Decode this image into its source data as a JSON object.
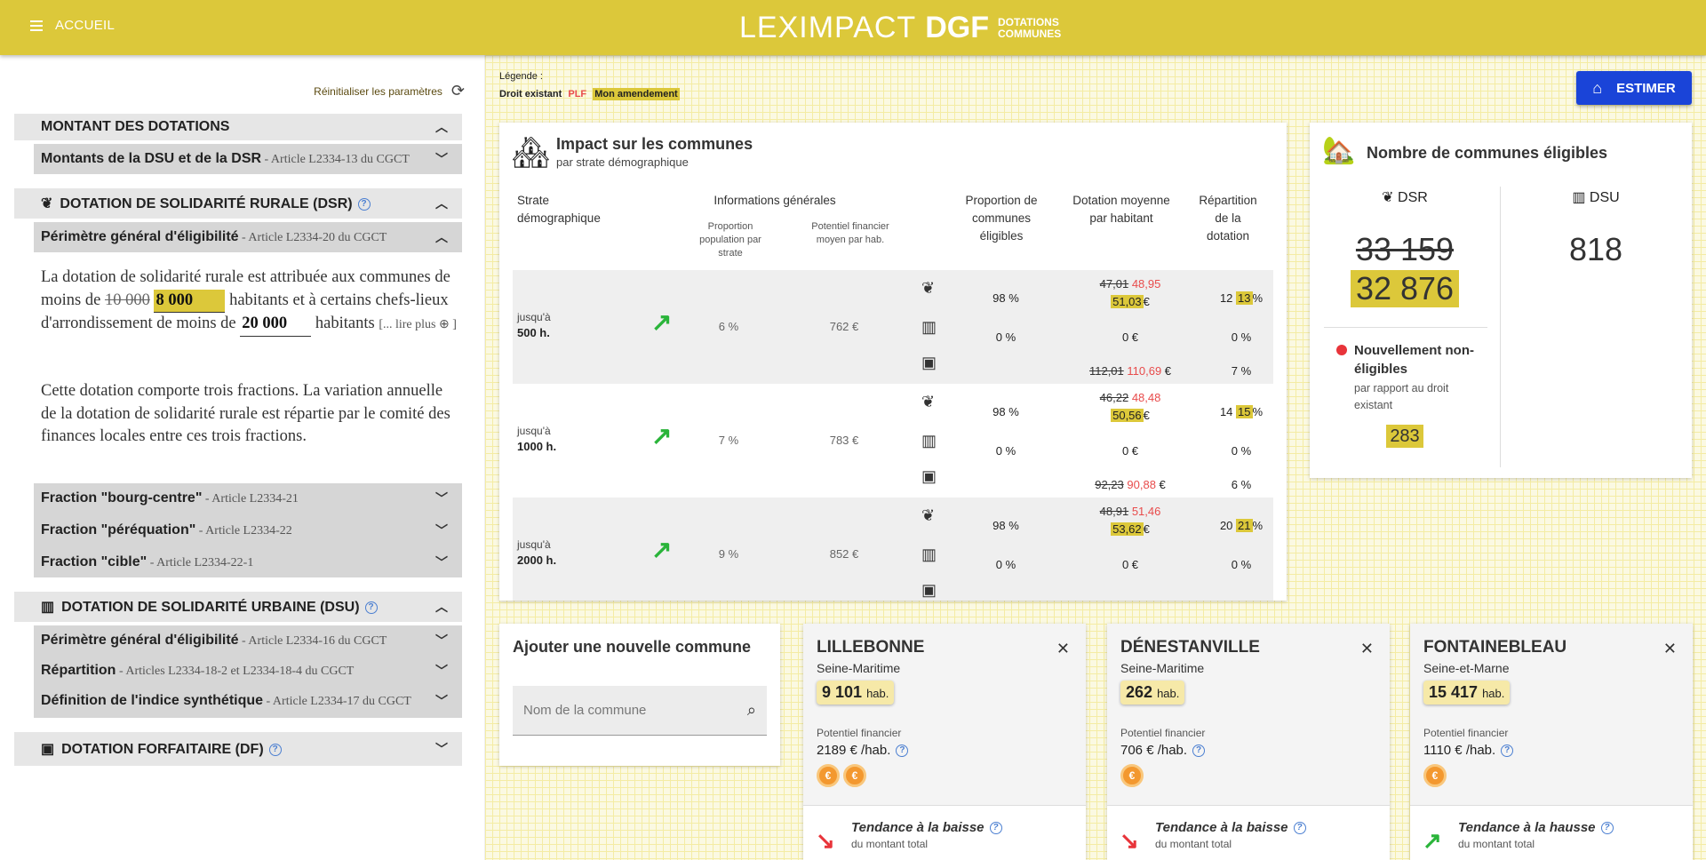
{
  "header": {
    "menu_label": "ACCUEIL",
    "brand_main": "LEXIMPACT",
    "brand_bold": "DGF",
    "brand_sub_1": "DOTATIONS",
    "brand_sub_2": "COMMUNES"
  },
  "sidebar": {
    "reset_label": "Réinitialiser les paramètres",
    "sections": {
      "montant": {
        "title": "MONTANT DES DOTATIONS"
      },
      "montant_sub": {
        "title": "Montants de la DSU et de la DSR",
        "ref": " - Article L2334-13 du CGCT"
      },
      "dsr": {
        "title": "DOTATION DE SOLIDARITÉ RURALE (DSR)"
      },
      "dsr_perimetre": {
        "title": "Périmètre général d'éligibilité",
        "ref": " - Article L2334-20 du CGCT"
      },
      "dsr_bourg": {
        "title": "Fraction \"bourg-centre\"",
        "ref": " - Article L2334-21"
      },
      "dsr_perequation": {
        "title": "Fraction \"péréquation\"",
        "ref": " - Article L2334-22"
      },
      "dsr_cible": {
        "title": "Fraction \"cible\"",
        "ref": " - Article L2334-22-1"
      },
      "dsu": {
        "title": "DOTATION DE SOLIDARITÉ URBAINE (DSU)"
      },
      "dsu_perimetre": {
        "title": "Périmètre général d'éligibilité",
        "ref": " - Article L2334-16 du CGCT"
      },
      "dsu_repartition": {
        "title": "Répartition",
        "ref": " - Articles L2334-18-2 et L2334-18-4 du CGCT"
      },
      "dsu_indice": {
        "title": "Définition de l'indice synthétique",
        "ref": " - Article L2334-17 du CGCT"
      },
      "df": {
        "title": "DOTATION FORFAITAIRE (DF)"
      }
    },
    "dsr_text": {
      "p1_a": "La dotation de solidarité rurale est attribuée aux communes de moins de ",
      "old_threshold": "10 000",
      "new_threshold": "8 000",
      "p1_b": " habitants et à certains chefs-lieux d'arrondissement de moins de ",
      "threshold2": "20 000",
      "p1_c": " habitants ",
      "more": "[... lire plus ⊕ ]",
      "p2": "Cette dotation comporte trois fractions. La variation annuelle de la dotation de solidarité rurale est répartie par le comité des finances locales entre ces trois fractions."
    }
  },
  "legend": {
    "title": "Légende :",
    "existant": "Droit existant",
    "plf": "PLF",
    "amendement": "Mon amendement"
  },
  "estimer_label": "ESTIMER",
  "impact": {
    "title": "Impact sur les communes",
    "subtitle": "par strate démographique",
    "headers": {
      "strate": "Strate démographique",
      "infos": "Informations générales",
      "prop_pop": "Proportion population par strate",
      "potentiel": "Potentiel financier moyen par hab.",
      "prop_elig": "Proportion de communes éligibles",
      "dot_moy": "Dotation moyenne par habitant",
      "repartition": "Répartition de la dotation"
    },
    "strates": [
      {
        "prefix": "jusqu'à",
        "label": "500 h.",
        "pop": "6 %",
        "pot": "762 €",
        "dsr_elig": "98 %",
        "dsr_old": "47,01",
        "dsr_plf": "48,95",
        "dsr_am": "51,03",
        "dsr_rep_old": "12",
        "dsr_rep_am": "13",
        "dsu_elig": "0 %",
        "dsu_dot": "0 €",
        "dsu_rep": "0 %",
        "df_old": "112,01",
        "df_plf": "110,69",
        "df_rep": "7 %"
      },
      {
        "prefix": "jusqu'à",
        "label": "1000 h.",
        "pop": "7 %",
        "pot": "783 €",
        "dsr_elig": "98 %",
        "dsr_old": "46,22",
        "dsr_plf": "48,48",
        "dsr_am": "50,56",
        "dsr_rep_old": "14",
        "dsr_rep_am": "15",
        "dsu_elig": "0 %",
        "dsu_dot": "0 €",
        "dsu_rep": "0 %",
        "df_old": "92,23",
        "df_plf": "90,88",
        "df_rep": "6 %"
      },
      {
        "prefix": "jusqu'à",
        "label": "2000 h.",
        "pop": "9 %",
        "pot": "852 €",
        "dsr_elig": "98 %",
        "dsr_old": "48,91",
        "dsr_plf": "51,46",
        "dsr_am": "53,62",
        "dsr_rep_old": "20",
        "dsr_rep_am": "21",
        "dsu_elig": "0 %",
        "dsu_dot": "0 €",
        "dsu_rep": "0 %"
      }
    ]
  },
  "eligibles": {
    "title": "Nombre de communes éligibles",
    "dsr_label": "DSR",
    "dsu_label": "DSU",
    "dsr_old": "33 159",
    "dsr_new": "32 876",
    "dsu_value": "818",
    "nouv_title": "Nouvellement non-éligibles",
    "nouv_sub": "par rapport au droit existant",
    "nouv_value": "283"
  },
  "add_commune": {
    "title": "Ajouter une nouvelle commune",
    "placeholder": "Nom de la commune"
  },
  "communes": [
    {
      "name": "LILLEBONNE",
      "dep": "Seine-Maritime",
      "pop": "9 101",
      "pop_unit": "hab.",
      "pf_label": "Potentiel financier",
      "pf_value": "2189 € /hab.",
      "coins": 2,
      "trend": "Tendance à la baisse",
      "trend_sub": "du montant total",
      "trend_dir": "down"
    },
    {
      "name": "DÉNESTANVILLE",
      "dep": "Seine-Maritime",
      "pop": "262",
      "pop_unit": "hab.",
      "pf_label": "Potentiel financier",
      "pf_value": "706 € /hab.",
      "coins": 1,
      "trend": "Tendance à la baisse",
      "trend_sub": "du montant total",
      "trend_dir": "down"
    },
    {
      "name": "FONTAINEBLEAU",
      "dep": "Seine-et-Marne",
      "pop": "15 417",
      "pop_unit": "hab.",
      "pf_label": "Potentiel financier",
      "pf_value": "1110 € /hab.",
      "coins": 1,
      "trend": "Tendance à la hausse",
      "trend_sub": "du montant total",
      "trend_dir": "up"
    }
  ],
  "colors": {
    "accent": "#dcc83a",
    "plf": "#e84b4b",
    "primary": "#1a44d8",
    "up": "#2ab43a",
    "down": "#e8343a"
  }
}
